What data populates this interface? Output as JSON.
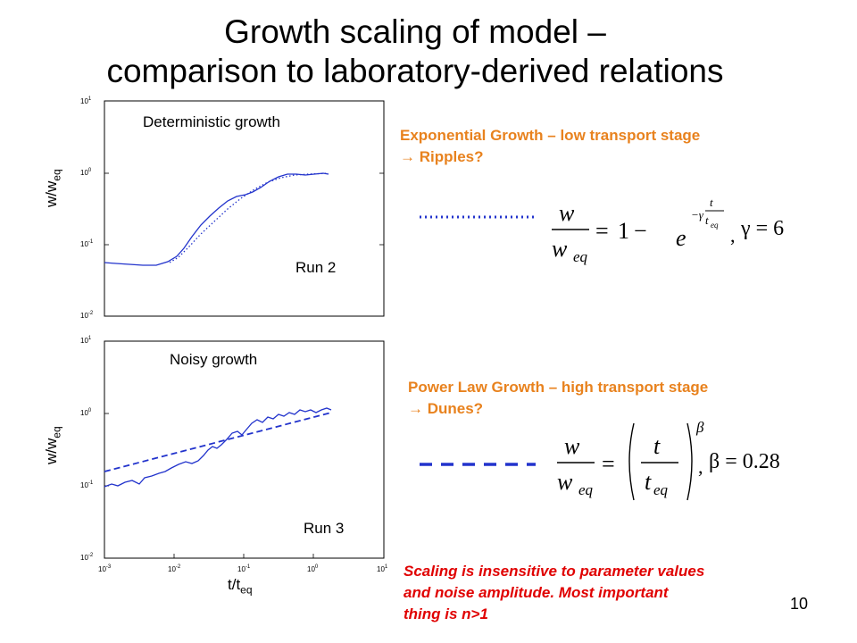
{
  "slide": {
    "title_line1": "Growth scaling of model –",
    "title_line2": "comparison to laboratory-derived relations",
    "page_number": "10"
  },
  "plots": {
    "top": {
      "label": "Deterministic growth",
      "run": "Run 2",
      "ylabel_main": "w/w",
      "ylabel_sub": "eq"
    },
    "bottom": {
      "label": "Noisy growth",
      "run": "Run 3",
      "ylabel_main": "w/w",
      "ylabel_sub": "eq",
      "xlabel_main": "t/t",
      "xlabel_sub": "eq"
    },
    "y_ticks": [
      "10",
      "10",
      "10",
      "10"
    ],
    "y_tick_exp": [
      "1",
      "0",
      "-1",
      "-2"
    ],
    "x_ticks": [
      "10",
      "10",
      "10",
      "10",
      "10"
    ],
    "x_tick_exp": [
      "-3",
      "-2",
      "-1",
      "0",
      "1"
    ]
  },
  "annotations": {
    "exp_line1": "Exponential Growth – low transport stage",
    "exp_line2": "→ Ripples?",
    "pow_line1": "Power Law Growth – high transport stage",
    "pow_line2": "→ Dunes?",
    "note_line1": "Scaling is insensitive to parameter values",
    "note_line2": "and noise amplitude.  Most important",
    "note_line3": "thing is n>1"
  },
  "formulas": {
    "exp_gamma": "γ = 6",
    "pow_beta": "β = 0.28"
  },
  "colors": {
    "curve": "#2233cc",
    "orange": "#e8821e",
    "red": "#e00000"
  }
}
